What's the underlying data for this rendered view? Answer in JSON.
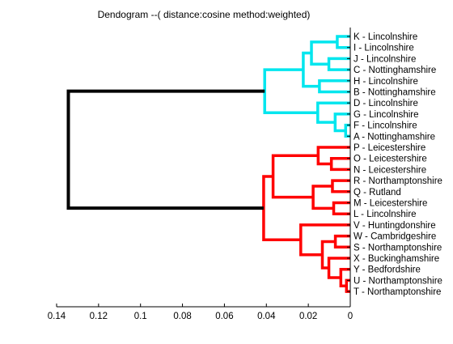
{
  "chart_data": {
    "type": "dendrogram",
    "title": "Dendogram --( distance:cosine method:weighted)",
    "xlabel": "",
    "ylabel": "",
    "xlim": [
      0.14,
      0
    ],
    "xticks": [
      "0.14",
      "0.12",
      "0.1",
      "0.08",
      "0.06",
      "0.04",
      "0.02",
      "0"
    ],
    "tick_values": [
      0.14,
      0.12,
      0.1,
      0.08,
      0.06,
      0.04,
      0.02,
      0
    ],
    "grid": false,
    "leaves": [
      "K - Lincolnshire",
      "I - Lincolnshire",
      "J - Lincolnshire",
      "C - Nottinghamshire",
      "H - Lincolnshire",
      "B - Nottinghamshire",
      "D - Lincolnshire",
      "G - Lincolnshire",
      "F - Lincolnshire",
      "A - Nottinghamshire",
      "P - Leicestershire",
      "O - Leicestershire",
      "N - Leicestershire",
      "R - Northamptonshire",
      "Q - Rutland",
      "M - Leicestershire",
      "L - Lincolnshire",
      "V - Huntingdonshire",
      "W - Cambridgeshire",
      "S - Northamptonshire",
      "X - Buckinghamshire",
      "Y - Bedfordshire",
      "U - Northamptonshire",
      "T - Northamptonshire"
    ],
    "merges": [
      {
        "a": 0,
        "b": 1,
        "height": 0.0062,
        "color": "cyan"
      },
      {
        "a": 2,
        "b": 3,
        "height": 0.0102,
        "color": "cyan"
      },
      {
        "a": 24,
        "b": 25,
        "height": 0.0185,
        "color": "cyan"
      },
      {
        "a": 4,
        "b": 5,
        "height": 0.0147,
        "color": "cyan"
      },
      {
        "a": 26,
        "b": 27,
        "height": 0.0224,
        "color": "cyan"
      },
      {
        "a": 8,
        "b": 9,
        "height": 0.0022,
        "color": "cyan"
      },
      {
        "a": 7,
        "b": 29,
        "height": 0.0072,
        "color": "cyan"
      },
      {
        "a": 6,
        "b": 30,
        "height": 0.0155,
        "color": "cyan"
      },
      {
        "a": 28,
        "b": 31,
        "height": 0.0408,
        "color": "cyan"
      },
      {
        "a": 11,
        "b": 12,
        "height": 0.009,
        "color": "red"
      },
      {
        "a": 10,
        "b": 33,
        "height": 0.0153,
        "color": "red"
      },
      {
        "a": 13,
        "b": 14,
        "height": 0.0085,
        "color": "red"
      },
      {
        "a": 15,
        "b": 16,
        "height": 0.0079,
        "color": "red"
      },
      {
        "a": 35,
        "b": 36,
        "height": 0.0177,
        "color": "red"
      },
      {
        "a": 34,
        "b": 37,
        "height": 0.0368,
        "color": "red"
      },
      {
        "a": 18,
        "b": 19,
        "height": 0.0071,
        "color": "red"
      },
      {
        "a": 22,
        "b": 23,
        "height": 0.0018,
        "color": "red"
      },
      {
        "a": 21,
        "b": 40,
        "height": 0.0045,
        "color": "red"
      },
      {
        "a": 20,
        "b": 41,
        "height": 0.0102,
        "color": "red"
      },
      {
        "a": 39,
        "b": 42,
        "height": 0.0133,
        "color": "red"
      },
      {
        "a": 17,
        "b": 43,
        "height": 0.0236,
        "color": "red"
      },
      {
        "a": 38,
        "b": 44,
        "height": 0.0413,
        "color": "red"
      },
      {
        "a": 32,
        "b": 45,
        "height": 0.1344,
        "color": "black"
      }
    ],
    "colors": {
      "cyan": "#00e6ee",
      "red": "#ff0000",
      "black": "#000000"
    }
  }
}
